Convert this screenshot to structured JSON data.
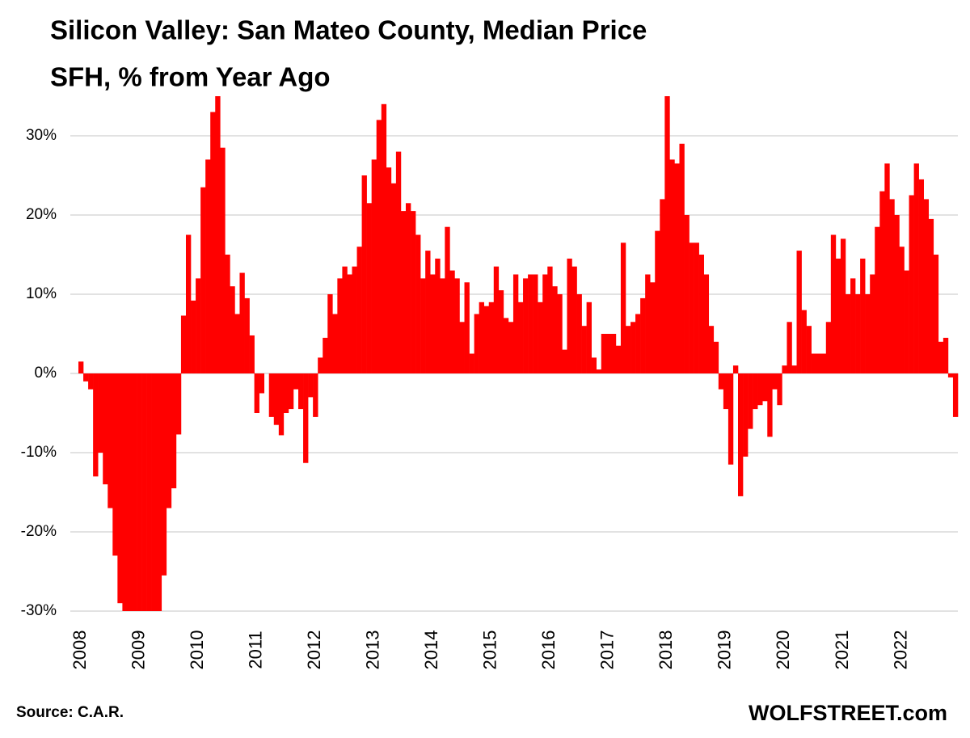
{
  "chart_data": {
    "type": "bar",
    "title": "Silicon Valley: San Mateo County, Median Price",
    "subtitle": "SFH, % from Year Ago",
    "source": "Source: C.A.R.",
    "watermark": "WOLFSTREET.com",
    "color": "#ff0000",
    "grid": true,
    "ylim": [
      -30,
      35
    ],
    "yticks": [
      {
        "value": -30,
        "label": "-30%"
      },
      {
        "value": -20,
        "label": "-20%"
      },
      {
        "value": -10,
        "label": "-10%"
      },
      {
        "value": 0,
        "label": "0%"
      },
      {
        "value": 10,
        "label": "10%"
      },
      {
        "value": 20,
        "label": "20%"
      },
      {
        "value": 30,
        "label": "30%"
      }
    ],
    "categories": [
      "2008",
      null,
      null,
      null,
      null,
      null,
      null,
      null,
      null,
      null,
      null,
      null,
      "2009",
      null,
      null,
      null,
      null,
      null,
      null,
      null,
      null,
      null,
      null,
      null,
      "2010",
      null,
      null,
      null,
      null,
      null,
      null,
      null,
      null,
      null,
      null,
      null,
      "2011",
      null,
      null,
      null,
      null,
      null,
      null,
      null,
      null,
      null,
      null,
      null,
      "2012",
      null,
      null,
      null,
      null,
      null,
      null,
      null,
      null,
      null,
      null,
      null,
      "2013",
      null,
      null,
      null,
      null,
      null,
      null,
      null,
      null,
      null,
      null,
      null,
      "2014",
      null,
      null,
      null,
      null,
      null,
      null,
      null,
      null,
      null,
      null,
      null,
      "2015",
      null,
      null,
      null,
      null,
      null,
      null,
      null,
      null,
      null,
      null,
      null,
      "2016",
      null,
      null,
      null,
      null,
      null,
      null,
      null,
      null,
      null,
      null,
      null,
      "2017",
      null,
      null,
      null,
      null,
      null,
      null,
      null,
      null,
      null,
      null,
      null,
      "2018",
      null,
      null,
      null,
      null,
      null,
      null,
      null,
      null,
      null,
      null,
      null,
      "2019",
      null,
      null,
      null,
      null,
      null,
      null,
      null,
      null,
      null,
      null,
      null,
      "2020",
      null,
      null,
      null,
      null,
      null,
      null,
      null,
      null,
      null,
      null,
      null,
      "2021",
      null,
      null,
      null,
      null,
      null,
      null,
      null,
      null,
      null,
      null,
      null,
      "2022",
      null,
      null,
      null,
      null,
      null,
      null,
      null,
      null,
      null,
      null,
      null
    ],
    "values": [
      1.5,
      -1,
      -2,
      -13,
      -10,
      -14,
      -17,
      -23,
      -29,
      -30,
      -30,
      -30,
      -30,
      -30,
      -30,
      -30,
      -30,
      -25.5,
      -17,
      -14.5,
      -7.7,
      7.3,
      17.5,
      9.2,
      12,
      23.5,
      27,
      33,
      35,
      28.5,
      15,
      11,
      7.5,
      12.7,
      9.5,
      4.8,
      -5,
      -2.5,
      0,
      -5.5,
      -6.5,
      -7.8,
      -5,
      -4.5,
      -2,
      -4.5,
      -11.3,
      -3,
      -5.5,
      2,
      4.5,
      10,
      7.5,
      12,
      13.5,
      12.5,
      13.5,
      16,
      25,
      21.5,
      27,
      32,
      34,
      26,
      24,
      28,
      20.5,
      21.5,
      20.5,
      17.5,
      12,
      15.5,
      12.5,
      14.5,
      12,
      18.5,
      13,
      12,
      6.5,
      11.5,
      2.5,
      7.5,
      9,
      8.5,
      9,
      13.5,
      10.5,
      7,
      6.5,
      12.5,
      9,
      12,
      12.5,
      12.5,
      9,
      12.5,
      13.5,
      11,
      10,
      3,
      14.5,
      13.5,
      10,
      6,
      9,
      2,
      0.5,
      5,
      5,
      5,
      3.5,
      16.5,
      6,
      6.5,
      7.5,
      9.5,
      12.5,
      11.5,
      18,
      22,
      35,
      27,
      26.5,
      29,
      20,
      16.5,
      16.5,
      15,
      12.5,
      6,
      4,
      -2,
      -4.5,
      -11.5,
      1,
      -15.5,
      -10.5,
      -7,
      -4.5,
      -4,
      -3.5,
      -8,
      -2,
      -4,
      1,
      6.5,
      1,
      15.5,
      8,
      6,
      2.5,
      2.5,
      2.5,
      6.5,
      17.5,
      14.5,
      17,
      10,
      12,
      10,
      14.5,
      10,
      12.5,
      18.5,
      23,
      26.5,
      22,
      20,
      16,
      13,
      22.5,
      26.5,
      24.5,
      22,
      19.5,
      15,
      4,
      4.5,
      -0.5,
      -5.5
    ]
  }
}
